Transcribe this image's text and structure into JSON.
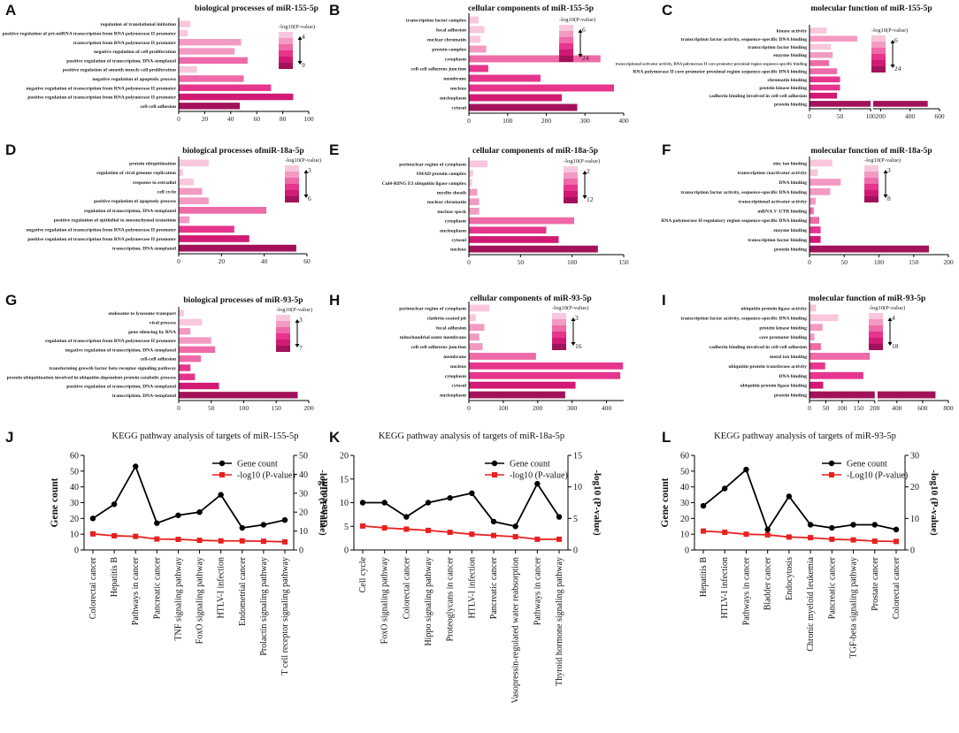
{
  "figure": {
    "panel_letters": [
      "A",
      "B",
      "C",
      "D",
      "E",
      "F",
      "G",
      "H",
      "I",
      "J",
      "K",
      "L"
    ]
  },
  "chart_data": [
    {
      "type": "bar",
      "panel": "A",
      "title": "biological processes of miR-155-5p",
      "categories": [
        "regulation of translational initiation",
        "positive regulation of pri-miRNA transcription from RNA polymerase II promoter",
        "transcription from RNA polymerase II promoter",
        "negative regulation of cell proliferation",
        "positive regulation of transcription, DNA-templated",
        "positive regulation of smooth muscle cell proliferation",
        "negative regulation of apoptotic process",
        "negative regulation of transcription from RNA polymerase II promoter",
        "positive regulation of transcription from RNA polymerase II promoter",
        "cell-cell adhesion"
      ],
      "values": [
        9,
        7,
        48,
        43,
        53,
        14,
        50,
        71,
        88,
        47
      ],
      "color_levels": [
        1,
        1,
        2,
        2,
        3,
        1,
        3,
        4,
        5,
        6
      ],
      "xlim": [
        0,
        100
      ],
      "xticks": [
        0,
        20,
        40,
        60,
        80,
        100
      ],
      "legend": {
        "title": "-log10(P-value)",
        "top": "4",
        "bottom": "9"
      }
    },
    {
      "type": "bar",
      "panel": "B",
      "title": "cellular components of miR-155-5p",
      "categories": [
        "transcription factor complex",
        "focal adhesion",
        "nuclear chromatin",
        "protein complex",
        "cytoplasm",
        "cell-cell adherens junction",
        "membrane",
        "nucleus",
        "nucleoplasm",
        "cytosol"
      ],
      "values": [
        25,
        40,
        30,
        45,
        340,
        50,
        185,
        375,
        240,
        280
      ],
      "color_levels": [
        1,
        1,
        1,
        2,
        3,
        4,
        4,
        4,
        5,
        6
      ],
      "xlim": [
        0,
        400
      ],
      "xticks": [
        0,
        100,
        200,
        300,
        400
      ],
      "legend": {
        "title": "-log10(P-value)",
        "top": "6",
        "bottom": "24"
      }
    },
    {
      "type": "bar",
      "panel": "C",
      "title": "molecular function of miR-155-5p",
      "categories": [
        "kinase activity",
        "transcription factor activity, sequence-specific DNA binding",
        "transcription factor binding",
        "enzyme binding",
        "transcriptional activator activity, RNA polymerase II core promoter proximal region sequence-specific binding",
        "RNA polymerase II core promoter proximal region sequence-specific DNA binding",
        "chromatin binding",
        "protein kinase binding",
        "cadherin binding involved in cell-cell adhesion",
        "protein binding"
      ],
      "values": [
        28,
        78,
        35,
        38,
        32,
        45,
        50,
        50,
        45,
        520
      ],
      "color_levels": [
        1,
        2,
        1,
        2,
        3,
        3,
        4,
        4,
        5,
        6
      ],
      "xlim": [
        0,
        600
      ],
      "break": [
        100,
        150
      ],
      "xticks": [
        0,
        50,
        100,
        200,
        400,
        600
      ],
      "legend": {
        "title": "-log10(P-value)",
        "top": "6",
        "bottom": "24"
      }
    },
    {
      "type": "bar",
      "panel": "D",
      "title": "biological processes ofmiR-18a-5p",
      "categories": [
        "protein ubiquitination",
        "regulation of viral genome replication",
        "response to estradiol",
        "cell cycle",
        "positive regulation of apoptotic process",
        "regulation of transcription, DNA-templated",
        "positive regulation of epithelial to mesenchymal transition",
        "negative regulation of transcription from RNA polymerase II promoter",
        "positive regulation of transcription from RNA polymerase II promoter",
        "transcription, DNA-templated"
      ],
      "values": [
        14,
        2,
        7,
        11,
        14,
        41,
        5,
        26,
        33,
        55
      ],
      "color_levels": [
        1,
        1,
        1,
        2,
        2,
        3,
        2,
        4,
        5,
        6
      ],
      "xlim": [
        0,
        60
      ],
      "xticks": [
        0,
        20,
        40,
        60
      ],
      "legend": {
        "title": "-log10(P-value)",
        "top": "3",
        "bottom": "6"
      }
    },
    {
      "type": "bar",
      "panel": "E",
      "title": "cellular components of miR-18a-5p",
      "categories": [
        "perinuclear region of cytoplasm",
        "SMAD protein complex",
        "Cul4-RING E3 ubiquitin ligase complex",
        "myelin sheath",
        "nuclear chromatin",
        "nuclear speck",
        "cytoplasm",
        "nucleoplasm",
        "cytosol",
        "nucleus"
      ],
      "values": [
        18,
        4,
        3,
        8,
        10,
        10,
        102,
        75,
        87,
        125
      ],
      "color_levels": [
        1,
        1,
        1,
        2,
        2,
        2,
        3,
        4,
        5,
        6
      ],
      "xlim": [
        0,
        150
      ],
      "xticks": [
        0,
        50,
        100,
        150
      ],
      "legend": {
        "title": "-log10(P-value)",
        "top": "2",
        "bottom": "12"
      }
    },
    {
      "type": "bar",
      "panel": "F",
      "title": "molecular function of miR-18a-5p",
      "categories": [
        "zinc ion binding",
        "transcription coactivator activity",
        "DNA binding",
        "transcription factor activity, sequence-specific DNA binding",
        "transcriptional activator activity",
        "mRNA 3'-UTR binding",
        "RNA polymerase II regulatory region sequence-specific DNA binding",
        "enzyme binding",
        "transcription factor binding",
        "protein binding"
      ],
      "values": [
        33,
        12,
        45,
        30,
        9,
        6,
        14,
        16,
        16,
        172
      ],
      "color_levels": [
        1,
        1,
        2,
        2,
        2,
        3,
        3,
        4,
        5,
        6
      ],
      "xlim": [
        0,
        200
      ],
      "xticks": [
        0,
        50,
        100,
        150,
        200
      ],
      "legend": {
        "title": "-log10(P-value)",
        "top": "3",
        "bottom": "8"
      }
    },
    {
      "type": "bar",
      "panel": "G",
      "title": "biological processes of miR-93-5p",
      "categories": [
        "endosome to lysosome transport",
        "viral process",
        "gene silencing by RNA",
        "regulation of transcription from RNA polymerase II promoter",
        "negative regulation of transcription, DNA-templated",
        "cell-cell adhesion",
        "transforming growth factor beta receptor signaling pathway",
        "protein ubiquitination involved in ubiquitin-dependent protein catabolic process",
        "positive regulation of transcription, DNA-templated",
        "transcription, DNA-templated"
      ],
      "values": [
        8,
        36,
        18,
        50,
        56,
        34,
        18,
        25,
        62,
        183
      ],
      "color_levels": [
        1,
        1,
        2,
        2,
        3,
        3,
        4,
        4,
        5,
        6
      ],
      "xlim": [
        0,
        200
      ],
      "xticks": [
        0,
        50,
        100,
        150,
        200
      ],
      "legend": {
        "title": "-log10(P-value)",
        "top": "3",
        "bottom": "7"
      }
    },
    {
      "type": "bar",
      "panel": "H",
      "title": "cellular components of miR-93-5p",
      "categories": [
        "perinuclear region of cytoplasm",
        "clathrin-coated pit",
        "focal adhesion",
        "mitochondrial outer membrane",
        "cell-cell adherens junction",
        "membrane",
        "nucleus",
        "cytoplasm",
        "cytosol",
        "nucleoplasm"
      ],
      "values": [
        60,
        20,
        45,
        30,
        40,
        195,
        448,
        440,
        310,
        280
      ],
      "color_levels": [
        1,
        1,
        2,
        2,
        2,
        3,
        4,
        4,
        5,
        6
      ],
      "xlim": [
        0,
        450
      ],
      "xticks": [
        0,
        100,
        200,
        300,
        400
      ],
      "legend": {
        "title": "-log10(P-value)",
        "top": "3",
        "bottom": "16"
      }
    },
    {
      "type": "bar",
      "panel": "I",
      "title": "molecular function of miR-93-5p",
      "categories": [
        "ubiquitin protein ligase activity",
        "transcription factor activity, sequence-specific DNA binding",
        "protein kinase binding",
        "core promoter binding",
        "cadherin binding involved in cell-cell adhesion",
        "metal ion binding",
        "ubiquitin-protein transferase activity",
        "DNA binding",
        "ubiquitin protein ligase binding",
        "protein binding"
      ],
      "values": [
        20,
        88,
        40,
        15,
        35,
        185,
        48,
        165,
        42,
        700
      ],
      "color_levels": [
        1,
        1,
        2,
        2,
        3,
        3,
        4,
        4,
        5,
        6
      ],
      "xlim": [
        0,
        800
      ],
      "break": [
        200,
        250
      ],
      "xticks": [
        0,
        50,
        100,
        150,
        200,
        400,
        600,
        800
      ],
      "legend": {
        "title": "-log10(P-value)",
        "top": "4",
        "bottom": "18"
      }
    },
    {
      "type": "line",
      "panel": "J",
      "title": "KEGG pathway analysis of targets of miR-155-5p",
      "categories": [
        "Colorectal cancer",
        "Hepatitis B",
        "Pathways in cancer",
        "Pancreatic cancer",
        "TNF signaling pathway",
        "FoxO signaling pathway",
        "HTLV-I infection",
        "Endometrial cancer",
        "Prolactin signaling pathway",
        "T cell receptor signaling pathway"
      ],
      "series": [
        {
          "name": "Gene count",
          "axis": "left",
          "values": [
            20,
            29,
            53,
            17,
            22,
            24,
            35,
            14,
            16,
            19
          ]
        },
        {
          "name": "-log10 (P-value)",
          "axis": "right",
          "values": [
            8.5,
            7.5,
            7.2,
            5.8,
            5.6,
            5.1,
            4.8,
            4.8,
            4.6,
            4.3
          ]
        }
      ],
      "ylabel": "Gene count",
      "y2label": "-log10 (P-value)",
      "ylim": [
        0,
        60
      ],
      "yticks": [
        0,
        10,
        20,
        30,
        40,
        50,
        60
      ],
      "y2lim": [
        0,
        50
      ],
      "y2ticks": [
        0,
        10,
        20,
        30,
        40,
        50
      ]
    },
    {
      "type": "line",
      "panel": "K",
      "title": "KEGG pathway analysis of targets of miR-18a-5p",
      "categories": [
        "Cell cycle",
        "FoxO signaling pathway",
        "Colorectal cancer",
        "Hippo signaling pathway",
        "Proteoglycans in cancer",
        "HTLV-I infection",
        "Pancreatic cancer",
        "Vasopressin-regulated water reabsorption",
        "Pathways in cancer",
        "Thyroid hormone signaling pathway"
      ],
      "series": [
        {
          "name": "Gene count",
          "axis": "left",
          "values": [
            10,
            10,
            7,
            10,
            11,
            12,
            6,
            5,
            14,
            7
          ]
        },
        {
          "name": "-log10 (P-value)",
          "axis": "right",
          "values": [
            3.8,
            3.5,
            3.3,
            3.1,
            2.8,
            2.5,
            2.3,
            2.1,
            1.7,
            1.7
          ]
        }
      ],
      "ylabel": "Gene count",
      "y2label": "-log10 (P-value)",
      "ylim": [
        0,
        20
      ],
      "yticks": [
        0,
        5,
        10,
        15,
        20
      ],
      "y2lim": [
        0,
        15
      ],
      "y2ticks": [
        0,
        5,
        10,
        15
      ]
    },
    {
      "type": "line",
      "panel": "L",
      "title": "KEGG pathway analysis of targets of miR-93-5p",
      "categories": [
        "Hepatitis B",
        "HTLV-I infection",
        "Pathways in cancer",
        "Bladder cancer",
        "Endocytosis",
        "Chronic myeloid leukemia",
        "Pancreatic cancer",
        "TGF-beta signaling pathway",
        "Prostate cancer",
        "Colorectal cancer"
      ],
      "series": [
        {
          "name": "Gene count",
          "axis": "left",
          "values": [
            28,
            39,
            51,
            13,
            34,
            16,
            14,
            16,
            16,
            13
          ]
        },
        {
          "name": "-Log10 (P-value)",
          "axis": "right",
          "values": [
            6.0,
            5.6,
            5.0,
            4.8,
            4.1,
            3.9,
            3.4,
            3.2,
            2.8,
            2.7
          ]
        }
      ],
      "ylabel": "Gene count",
      "y2label": "-log10 (P-value)",
      "ylim": [
        0,
        60
      ],
      "yticks": [
        0,
        10,
        20,
        30,
        40,
        50,
        60
      ],
      "y2lim": [
        0,
        30
      ],
      "y2ticks": [
        0,
        10,
        20,
        30
      ]
    }
  ],
  "colors": {
    "levels": [
      "#f8c7dd",
      "#f39ac3",
      "#ee6aa8",
      "#e6358c",
      "#d11a74",
      "#a2125a"
    ],
    "gene_count_line": "#000000",
    "pvalue_line": "#e8201f"
  }
}
